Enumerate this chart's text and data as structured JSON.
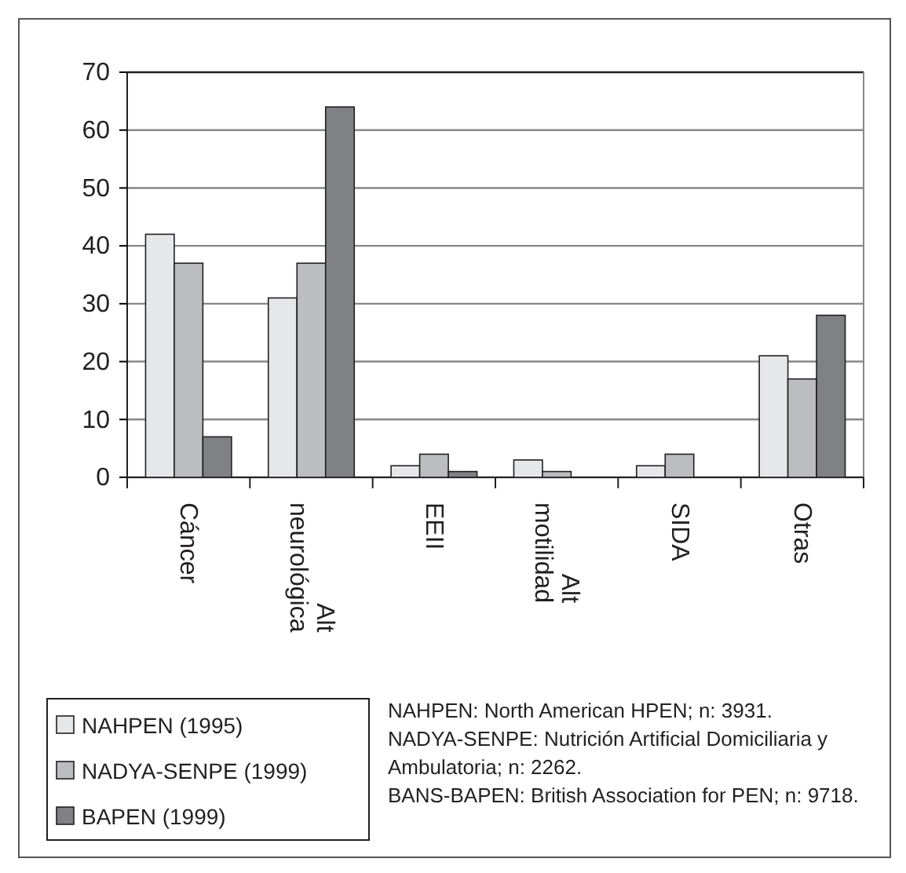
{
  "chart_data": {
    "type": "bar",
    "categories": [
      "Cáncer",
      "Alt neurológica",
      "EEII",
      "Alt motilidad",
      "SIDA",
      "Otras"
    ],
    "series": [
      {
        "name": "NAHPEN (1995)",
        "color": "#e6e7e8",
        "values": [
          42,
          31,
          2,
          3,
          2,
          21
        ]
      },
      {
        "name": "NADYA-SENPE (1999)",
        "color": "#bcbdc0",
        "values": [
          37,
          37,
          4,
          1,
          4,
          17
        ]
      },
      {
        "name": "BAPEN (1999)",
        "color": "#808184",
        "values": [
          7,
          64,
          1,
          null,
          null,
          28
        ]
      }
    ],
    "ylim": [
      0,
      70
    ],
    "yticks": [
      0,
      10,
      20,
      30,
      40,
      50,
      60,
      70
    ],
    "grid": "y",
    "legend": "bottom left",
    "annotations": [
      "NAHPEN: North American HPEN; n: 3931.",
      "NADYA-SENPE: Nutrición Artificial Domiciliaria y Ambulatoria; n: 2262.",
      "BANS-BAPEN: British Association for PEN; n: 9718."
    ]
  }
}
